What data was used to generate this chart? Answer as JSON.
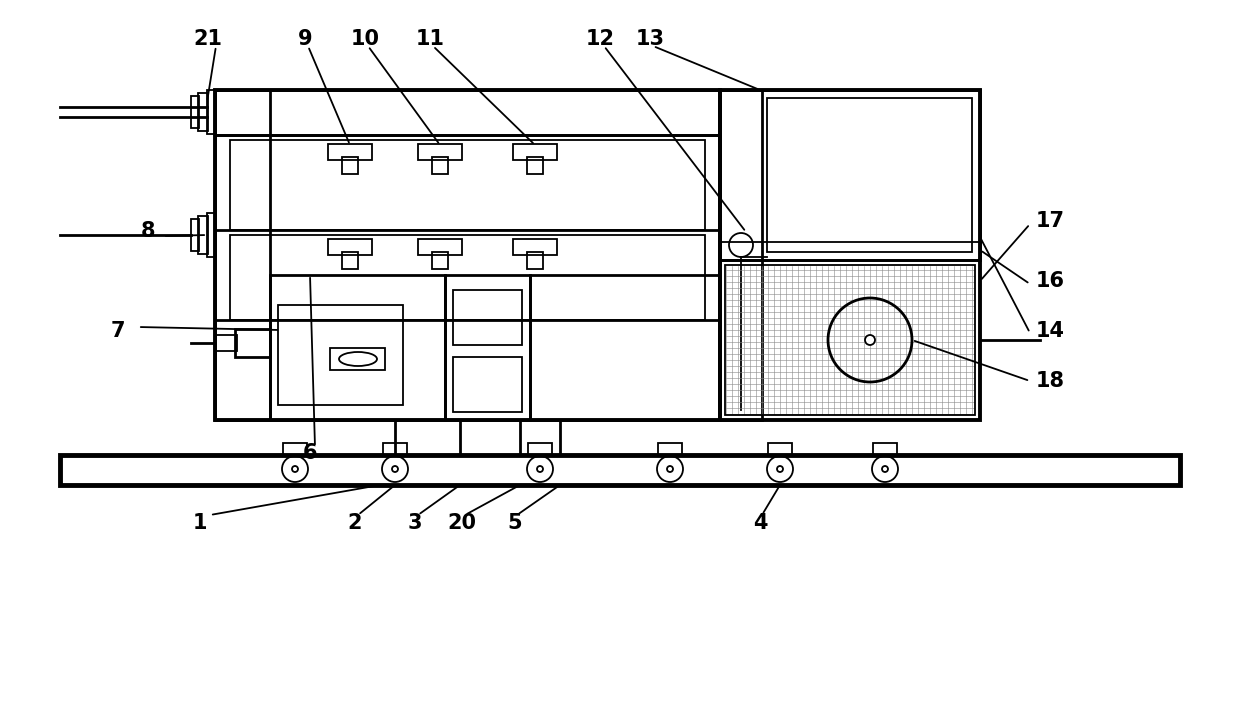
{
  "bg_color": "#ffffff",
  "line_color": "#000000",
  "lw_main": 2.0,
  "lw_thin": 1.3,
  "lw_thick": 2.8,
  "lw_ultra": 3.5,
  "font_size": 15
}
